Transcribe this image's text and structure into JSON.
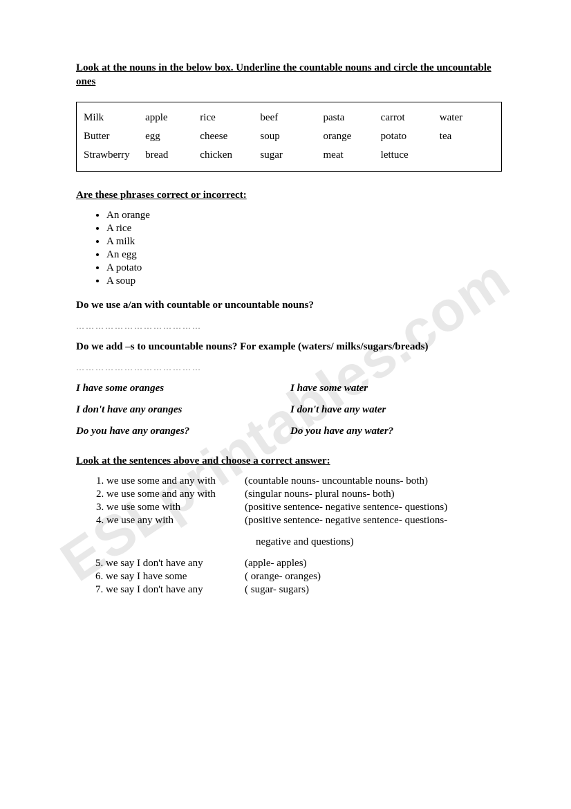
{
  "watermark": "ESLprintables.com",
  "heading": "Look at the nouns in the below box. Underline the countable nouns and circle the uncountable ones",
  "wordbox": {
    "rows": [
      [
        "Milk",
        "apple",
        "rice",
        "beef",
        "pasta",
        "carrot",
        "water"
      ],
      [
        "Butter",
        "egg",
        "cheese",
        "soup",
        "orange",
        "potato",
        "tea"
      ],
      [
        "Strawberry",
        "bread",
        "chicken",
        "sugar",
        "meat",
        "lettuce",
        ""
      ]
    ]
  },
  "section2": {
    "title": "Are these phrases correct or incorrect:",
    "items": [
      "An orange",
      "A rice",
      "A milk",
      "An egg",
      "A potato",
      "A soup"
    ]
  },
  "q1": "Do we use a/an with countable or uncountable nouns?",
  "dots": "…………………………………",
  "q2": "Do we add –s to uncountable nouns? For example (waters/ milks/sugars/breads)",
  "examples": [
    {
      "left": "I have some oranges",
      "right": "I have some water"
    },
    {
      "left": "I don't have any oranges",
      "right": "I don't have any water"
    },
    {
      "left": "Do you have any oranges?",
      "right": "Do you have any water?"
    }
  ],
  "section3": {
    "title": "Look at the sentences above and choose a correct answer:",
    "items": [
      {
        "left": "we use some and any with",
        "right": "(countable nouns- uncountable nouns- both)"
      },
      {
        "left": "we use some and any with",
        "right": "(singular nouns- plural nouns- both)"
      },
      {
        "left": "we use some with",
        "right": "(positive sentence- negative sentence- questions)"
      },
      {
        "left": "we use any with",
        "right": "(positive sentence- negative sentence- questions-"
      }
    ],
    "cont": " negative and questions)",
    "items2": [
      {
        "num": "5.",
        "left": "we say I don't have any",
        "right": "(apple- apples)"
      },
      {
        "num": "6.",
        "left": "we say I have some",
        "right": "( orange- oranges)"
      },
      {
        "num": "7.",
        "left": "we say I don't have any",
        "right": "( sugar- sugars)"
      }
    ]
  }
}
